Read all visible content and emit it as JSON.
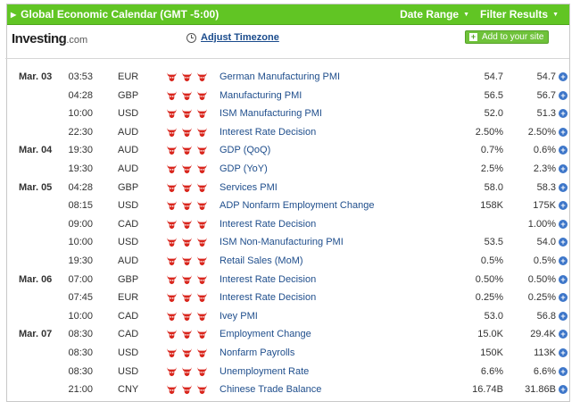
{
  "header": {
    "title": "Global Economic Calendar (GMT -5:00)",
    "date_range": "Date Range",
    "filter_results": "Filter Results"
  },
  "brand": {
    "name": "Investing",
    "suffix": ".com"
  },
  "timezone_link": "Adjust Timezone",
  "add_site_label": "Add to your site",
  "colors": {
    "header_green": "#61c524",
    "link_blue": "#1f4e8c",
    "bull_red": "#d9251c"
  },
  "rows": [
    {
      "date": "Mar. 03",
      "time": "03:53",
      "currency": "EUR",
      "event": "German Manufacturing PMI",
      "actual": "54.7",
      "forecast": "54.7"
    },
    {
      "date": "",
      "time": "04:28",
      "currency": "GBP",
      "event": "Manufacturing PMI",
      "actual": "56.5",
      "forecast": "56.7"
    },
    {
      "date": "",
      "time": "10:00",
      "currency": "USD",
      "event": "ISM Manufacturing PMI",
      "actual": "52.0",
      "forecast": "51.3"
    },
    {
      "date": "",
      "time": "22:30",
      "currency": "AUD",
      "event": "Interest Rate Decision",
      "actual": "2.50%",
      "forecast": "2.50%"
    },
    {
      "date": "Mar. 04",
      "time": "19:30",
      "currency": "AUD",
      "event": "GDP (QoQ)",
      "actual": "0.7%",
      "forecast": "0.6%"
    },
    {
      "date": "",
      "time": "19:30",
      "currency": "AUD",
      "event": "GDP (YoY)",
      "actual": "2.5%",
      "forecast": "2.3%"
    },
    {
      "date": "Mar. 05",
      "time": "04:28",
      "currency": "GBP",
      "event": "Services PMI",
      "actual": "58.0",
      "forecast": "58.3"
    },
    {
      "date": "",
      "time": "08:15",
      "currency": "USD",
      "event": "ADP Nonfarm Employment Change",
      "actual": "158K",
      "forecast": "175K"
    },
    {
      "date": "",
      "time": "09:00",
      "currency": "CAD",
      "event": "Interest Rate Decision",
      "actual": "",
      "forecast": "1.00%"
    },
    {
      "date": "",
      "time": "10:00",
      "currency": "USD",
      "event": "ISM Non-Manufacturing PMI",
      "actual": "53.5",
      "forecast": "54.0"
    },
    {
      "date": "",
      "time": "19:30",
      "currency": "AUD",
      "event": "Retail Sales (MoM)",
      "actual": "0.5%",
      "forecast": "0.5%"
    },
    {
      "date": "Mar. 06",
      "time": "07:00",
      "currency": "GBP",
      "event": "Interest Rate Decision",
      "actual": "0.50%",
      "forecast": "0.50%"
    },
    {
      "date": "",
      "time": "07:45",
      "currency": "EUR",
      "event": "Interest Rate Decision",
      "actual": "0.25%",
      "forecast": "0.25%"
    },
    {
      "date": "",
      "time": "10:00",
      "currency": "CAD",
      "event": "Ivey PMI",
      "actual": "53.0",
      "forecast": "56.8"
    },
    {
      "date": "Mar. 07",
      "time": "08:30",
      "currency": "CAD",
      "event": "Employment Change",
      "actual": "15.0K",
      "forecast": "29.4K"
    },
    {
      "date": "",
      "time": "08:30",
      "currency": "USD",
      "event": "Nonfarm Payrolls",
      "actual": "150K",
      "forecast": "113K"
    },
    {
      "date": "",
      "time": "08:30",
      "currency": "USD",
      "event": "Unemployment Rate",
      "actual": "6.6%",
      "forecast": "6.6%"
    },
    {
      "date": "",
      "time": "21:00",
      "currency": "CNY",
      "event": "Chinese Trade Balance",
      "actual": "16.74B",
      "forecast": "31.86B"
    }
  ],
  "importance_icon": "bull-icon",
  "importance_level": 3,
  "expand_icon": "plus-circle-icon"
}
